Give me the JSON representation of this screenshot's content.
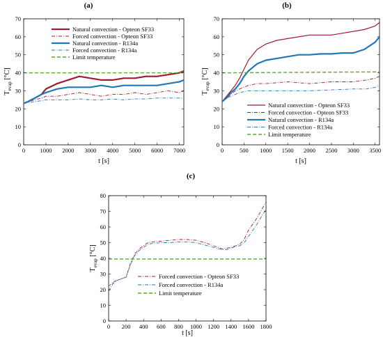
{
  "colors": {
    "natural_opteon": "#9e1b32",
    "forced_opteon": "#9e1b32",
    "natural_r134a": "#1f77b4",
    "forced_r134a": "#1f77b4",
    "limit": "#5aa832"
  },
  "chart_data": [
    {
      "type": "line",
      "panel_label": "(a)",
      "xlabel": "t [s]",
      "ylabel_main": "T",
      "ylabel_sub": "evap",
      "ylabel_unit": " [°C]",
      "xlim": [
        0,
        7200
      ],
      "ylim": [
        0,
        70
      ],
      "xticks": [
        0,
        1000,
        2000,
        3000,
        4000,
        5000,
        6000,
        7000
      ],
      "yticks": [
        0,
        10,
        20,
        30,
        40,
        50,
        60,
        70
      ],
      "legend_position": "top-left",
      "series": [
        {
          "name": "Natural convection - Opteon SF33",
          "style": "natural_opteon",
          "x": [
            0,
            200,
            500,
            800,
            1000,
            1500,
            2000,
            2500,
            3000,
            3500,
            4000,
            4500,
            5000,
            5500,
            6000,
            6500,
            7000,
            7200
          ],
          "y": [
            23,
            24,
            26,
            28,
            31,
            34,
            36,
            38,
            37,
            36,
            36,
            37,
            37,
            38,
            38,
            39,
            40,
            41
          ]
        },
        {
          "name": "Forced convection - Opteon SF33",
          "style": "forced_opteon",
          "x": [
            0,
            200,
            500,
            800,
            1000,
            1500,
            2000,
            2500,
            3000,
            3500,
            4000,
            4500,
            5000,
            5500,
            6000,
            6500,
            7000,
            7200
          ],
          "y": [
            23,
            24,
            25,
            26,
            27,
            27,
            28,
            29,
            28,
            27,
            28,
            28,
            29,
            28,
            29,
            30,
            29,
            30
          ]
        },
        {
          "name": "Natural convection - R134a",
          "style": "natural_r134a",
          "x": [
            0,
            200,
            500,
            800,
            1000,
            1500,
            2000,
            2500,
            3000,
            3500,
            4000,
            4500,
            5000,
            5500,
            6000,
            6500,
            7000,
            7200
          ],
          "y": [
            23,
            24,
            26,
            28,
            29,
            31,
            32,
            32,
            32,
            33,
            32,
            33,
            33,
            33,
            33,
            34,
            35,
            36
          ]
        },
        {
          "name": "Forced convection - R134a",
          "style": "forced_r134a",
          "x": [
            0,
            200,
            500,
            800,
            1000,
            1500,
            2000,
            2500,
            3000,
            3500,
            4000,
            4500,
            5000,
            5500,
            6000,
            6500,
            7000,
            7200
          ],
          "y": [
            23,
            23.5,
            24,
            24.5,
            25,
            25,
            25,
            25.5,
            25,
            25,
            25.5,
            25,
            25.5,
            25.5,
            26,
            26,
            26,
            26
          ]
        },
        {
          "name": "Limit temperature",
          "style": "limit",
          "x": [
            0,
            7200
          ],
          "y": [
            40,
            40
          ]
        }
      ]
    },
    {
      "type": "line",
      "panel_label": "(b)",
      "xlabel": "t [s]",
      "ylabel_main": "T",
      "ylabel_sub": "evap",
      "ylabel_unit": " [°C]",
      "xlim": [
        0,
        3600
      ],
      "ylim": [
        0,
        70
      ],
      "xticks": [
        0,
        500,
        1000,
        1500,
        2000,
        2500,
        3000,
        3500
      ],
      "yticks": [
        0,
        10,
        20,
        30,
        40,
        50,
        60,
        70
      ],
      "legend_position": "bottom-left",
      "series": [
        {
          "name": "Natural convection - Opteon SF33",
          "style": "natural_opteon_thin",
          "x": [
            0,
            100,
            200,
            300,
            400,
            500,
            600,
            700,
            800,
            1000,
            1250,
            1500,
            1750,
            2000,
            2250,
            2500,
            2750,
            3000,
            3250,
            3500,
            3600
          ],
          "y": [
            24,
            27,
            30,
            33,
            37,
            42,
            47,
            50,
            53,
            56,
            58,
            59,
            60,
            61,
            61,
            61,
            62,
            63,
            64,
            66,
            68
          ]
        },
        {
          "name": "Forced convection - Opteon SF33",
          "style": "forced_opteon",
          "x": [
            0,
            100,
            200,
            300,
            400,
            500,
            600,
            800,
            1000,
            1500,
            2000,
            2500,
            3000,
            3300,
            3500,
            3600
          ],
          "y": [
            24,
            26,
            28,
            30,
            31,
            32,
            33,
            34,
            34,
            35,
            34,
            35,
            35,
            36,
            37,
            38
          ]
        },
        {
          "name": "Natural convection - R134a",
          "style": "natural_r134a",
          "x": [
            0,
            100,
            200,
            300,
            400,
            500,
            600,
            700,
            800,
            1000,
            1250,
            1500,
            1750,
            2000,
            2250,
            2500,
            2750,
            3000,
            3250,
            3500,
            3600
          ],
          "y": [
            24,
            26,
            29,
            31,
            34,
            38,
            41,
            43,
            45,
            47,
            48,
            49,
            50,
            50,
            50.5,
            50.5,
            51,
            51,
            53,
            57,
            60
          ]
        },
        {
          "name": "Forced convection - R134a",
          "style": "forced_r134a",
          "x": [
            0,
            100,
            200,
            300,
            400,
            500,
            600,
            800,
            1000,
            1500,
            2000,
            2500,
            3000,
            3300,
            3500,
            3600
          ],
          "y": [
            24,
            26,
            27,
            28,
            29,
            29.5,
            30,
            30,
            30,
            30,
            30,
            30.5,
            31,
            31,
            32,
            33
          ]
        },
        {
          "name": "Limit temperature",
          "style": "limit",
          "x": [
            0,
            3600
          ],
          "y": [
            40,
            40.5
          ]
        }
      ]
    },
    {
      "type": "line",
      "panel_label": "(c)",
      "xlabel": "t [s]",
      "ylabel_main": "T",
      "ylabel_sub": "evap",
      "ylabel_unit": " [°C]",
      "xlim": [
        0,
        1800
      ],
      "ylim": [
        0,
        80
      ],
      "xticks": [
        0,
        200,
        400,
        600,
        800,
        1000,
        1200,
        1400,
        1600,
        1800
      ],
      "yticks": [
        0,
        10,
        20,
        30,
        40,
        50,
        60,
        70,
        80
      ],
      "legend_position": "bottom-left",
      "series": [
        {
          "name": "Forced convection - Opteon SF33",
          "style": "forced_opteon",
          "x": [
            0,
            50,
            100,
            150,
            200,
            250,
            300,
            350,
            400,
            450,
            500,
            600,
            700,
            800,
            900,
            1000,
            1100,
            1200,
            1300,
            1350,
            1400,
            1450,
            1500,
            1550,
            1600,
            1650,
            1700,
            1750,
            1800
          ],
          "y": [
            19,
            24,
            26,
            27,
            28,
            37,
            43,
            46,
            48,
            50,
            50.5,
            51,
            51.5,
            52,
            52,
            51.5,
            50,
            48,
            46,
            46.5,
            47,
            48,
            49,
            52,
            58,
            62,
            66,
            71,
            76
          ]
        },
        {
          "name": "Forced convection - R134a",
          "style": "forced_r134a",
          "x": [
            0,
            50,
            100,
            150,
            200,
            250,
            300,
            350,
            400,
            450,
            500,
            600,
            700,
            800,
            900,
            1000,
            1100,
            1200,
            1300,
            1350,
            1400,
            1450,
            1500,
            1550,
            1600,
            1650,
            1700,
            1750,
            1800
          ],
          "y": [
            22,
            25,
            26,
            27,
            28,
            36,
            42,
            45,
            47,
            49,
            49.5,
            50,
            50,
            50.5,
            50.5,
            50,
            48.5,
            47,
            45.5,
            45.5,
            46.5,
            47.5,
            48,
            50,
            54,
            58,
            62,
            67,
            71
          ]
        },
        {
          "name": "Limit temperature",
          "style": "limit",
          "x": [
            0,
            1800
          ],
          "y": [
            39.5,
            39.5
          ]
        }
      ]
    }
  ]
}
